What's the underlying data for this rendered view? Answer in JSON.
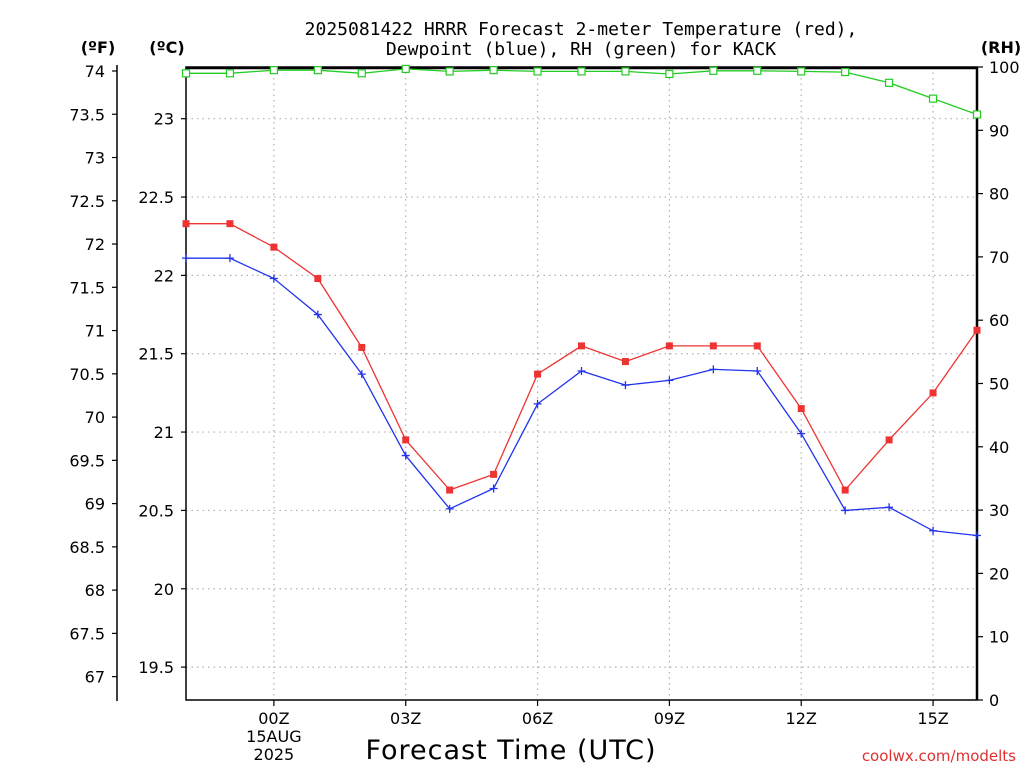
{
  "chart_data": {
    "type": "line",
    "title_line1": "2025081422 HRRR Forecast 2-meter Temperature (red),",
    "title_line2": "Dewpoint (blue), RH (green) for KACK",
    "xlabel": "Forecast Time (UTC)",
    "watermark": "coolwx.com/modelts",
    "x": [
      -2,
      -1,
      0,
      1,
      2,
      3,
      4,
      5,
      6,
      7,
      8,
      9,
      10,
      11,
      12,
      13,
      14,
      15,
      16
    ],
    "xlim": [
      -2,
      16
    ],
    "x_ticks": [
      {
        "x": 0,
        "label": "00Z",
        "sub1": "15AUG",
        "sub2": "2025"
      },
      {
        "x": 3,
        "label": "03Z"
      },
      {
        "x": 6,
        "label": "06Z"
      },
      {
        "x": 9,
        "label": "09Z"
      },
      {
        "x": 12,
        "label": "12Z"
      },
      {
        "x": 15,
        "label": "15Z"
      }
    ],
    "axes": {
      "fahrenheit": {
        "label": "(ºF)",
        "min": 66.73,
        "max": 74.0,
        "ticks": [
          "67",
          "67.5",
          "68",
          "68.5",
          "69",
          "69.5",
          "70",
          "70.5",
          "71",
          "71.5",
          "72",
          "72.5",
          "73",
          "73.5",
          "74"
        ]
      },
      "celsius": {
        "label": "(ºC)",
        "ylim": [
          19.29,
          23.33
        ],
        "ticks": [
          "19.5",
          "20",
          "20.5",
          "21",
          "21.5",
          "22",
          "22.5",
          "23"
        ]
      },
      "rh": {
        "label": "(RH)",
        "ylim": [
          0,
          100
        ],
        "ticks": [
          "0",
          "10",
          "20",
          "30",
          "40",
          "50",
          "60",
          "70",
          "80",
          "90",
          "100"
        ]
      }
    },
    "series": [
      {
        "key": "temperature",
        "unit": "C",
        "color": "#ee3333",
        "marker": "square-filled",
        "values": [
          22.33,
          22.33,
          22.18,
          21.98,
          21.54,
          20.95,
          20.63,
          20.73,
          21.37,
          21.55,
          21.45,
          21.55,
          21.55,
          21.55,
          21.15,
          20.63,
          20.95,
          21.25,
          21.65
        ]
      },
      {
        "key": "dewpoint",
        "unit": "C",
        "color": "#2233ee",
        "marker": "plus",
        "values": [
          22.11,
          22.11,
          21.98,
          21.75,
          21.37,
          20.85,
          20.51,
          20.64,
          21.18,
          21.39,
          21.3,
          21.33,
          21.4,
          21.39,
          20.99,
          20.5,
          20.52,
          20.37,
          20.34
        ]
      },
      {
        "key": "rh",
        "unit": "%",
        "color": "#22cc22",
        "marker": "square-open",
        "values": [
          99,
          99,
          99.5,
          99.5,
          99,
          99.7,
          99.3,
          99.5,
          99.3,
          99.3,
          99.3,
          98.9,
          99.4,
          99.4,
          99.3,
          99.2,
          97.5,
          95,
          92.5
        ]
      }
    ]
  }
}
